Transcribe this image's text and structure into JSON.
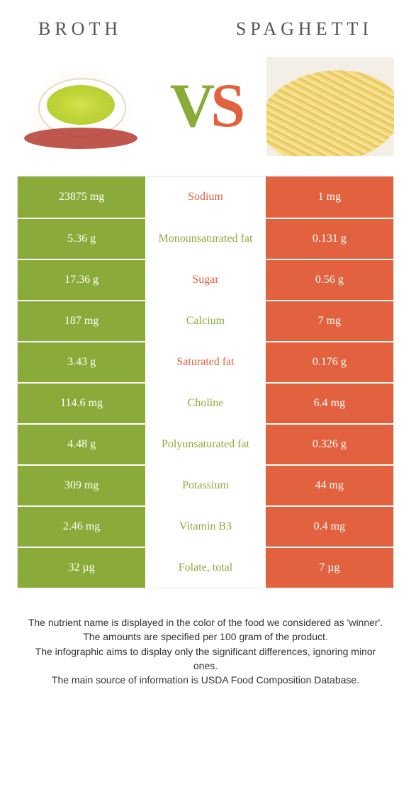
{
  "header": {
    "left": "BROTH",
    "right": "SPAGHETTI"
  },
  "vs": {
    "v": "V",
    "s": "S"
  },
  "colors": {
    "green": "#8aab3a",
    "orange": "#e2623f"
  },
  "leftColor": "green",
  "rightColor": "orange",
  "rows": [
    {
      "left": "23875 mg",
      "label": "Sodium",
      "right": "1 mg",
      "winner": "orange"
    },
    {
      "left": "5.36 g",
      "label": "Monounsaturated fat",
      "right": "0.131 g",
      "winner": "green"
    },
    {
      "left": "17.36 g",
      "label": "Sugar",
      "right": "0.56 g",
      "winner": "orange"
    },
    {
      "left": "187 mg",
      "label": "Calcium",
      "right": "7 mg",
      "winner": "green"
    },
    {
      "left": "3.43 g",
      "label": "Saturated fat",
      "right": "0.176 g",
      "winner": "orange"
    },
    {
      "left": "114.6 mg",
      "label": "Choline",
      "right": "6.4 mg",
      "winner": "green"
    },
    {
      "left": "4.48 g",
      "label": "Polyunsaturated fat",
      "right": "0.326 g",
      "winner": "green"
    },
    {
      "left": "309 mg",
      "label": "Potassium",
      "right": "44 mg",
      "winner": "green"
    },
    {
      "left": "2.46 mg",
      "label": "Vitamin B3",
      "right": "0.4 mg",
      "winner": "green"
    },
    {
      "left": "32 µg",
      "label": "Folate, total",
      "right": "7 µg",
      "winner": "green"
    }
  ],
  "footer": {
    "l1": "The nutrient name is displayed in the color of the food we considered as 'winner'.",
    "l2": "The amounts are specified per 100 gram of the product.",
    "l3": "The infographic aims to display only the significant differences, ignoring minor ones.",
    "l4": "The main source of information is USDA Food Composition Database."
  }
}
